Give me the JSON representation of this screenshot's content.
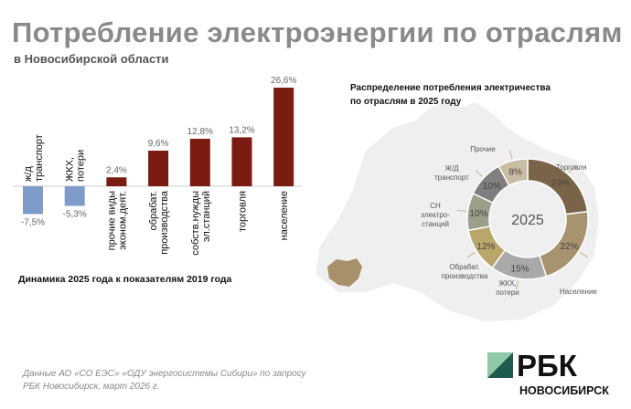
{
  "header": {
    "title": "Потребление электроэнергии по отраслям",
    "subtitle": "в Новосибирской области"
  },
  "chart_data": [
    {
      "type": "bar",
      "title": "Динамика 2025 года к показателям 2019 года",
      "unit": "%",
      "categories": [
        "ж/д транспорт",
        "ЖКХ, потери",
        "прочие виды эконом.деят.",
        "обрабат. производства",
        "собств.нужды эл.станций",
        "торговля",
        "население"
      ],
      "label_lines": [
        [
          "ж/д",
          "транспорт"
        ],
        [
          "ЖКХ,",
          "потери"
        ],
        [
          "прочие виды",
          "эконом.деят."
        ],
        [
          "обрабат.",
          "производства"
        ],
        [
          "собств.нужды",
          "эл.станций"
        ],
        [
          "торговля"
        ],
        [
          "население"
        ]
      ],
      "values": [
        -7.5,
        -5.3,
        2.4,
        9.6,
        12.8,
        13.2,
        26.6
      ],
      "value_labels": [
        "-7,5%",
        "-5,3%",
        "2,4%",
        "9,6%",
        "12,8%",
        "13,2%",
        "26,6%"
      ],
      "colors": {
        "negative": "#7f9cc9",
        "positive": "#7a1c12"
      }
    },
    {
      "type": "pie",
      "title": "Распределение потребления электричества по отраслям в 2025 году",
      "center_label": "2025",
      "categories": [
        "Торговля",
        "Население",
        "ЖКХ, потери",
        "Обрабат. производства",
        "СН электро-станций",
        "Ж/Д транспорт",
        "Прочие"
      ],
      "label_lines": [
        [
          "Торговля"
        ],
        [
          "Население"
        ],
        [
          "ЖКХ,",
          "потери"
        ],
        [
          "Обрабат.",
          "производства"
        ],
        [
          "СН",
          "электро-",
          "станций"
        ],
        [
          "Ж/Д",
          "транспорт"
        ],
        [
          "Прочие"
        ]
      ],
      "values": [
        23,
        22,
        15,
        12,
        10,
        10,
        8
      ],
      "value_labels": [
        "23%",
        "22%",
        "15%",
        "12%",
        "10%",
        "10%",
        "8%"
      ],
      "colors": [
        "#7a6448",
        "#a8936f",
        "#a9a9a9",
        "#b9a66b",
        "#9e9e8c",
        "#7f7f7f",
        "#c9bca4"
      ]
    }
  ],
  "footer": {
    "source_line1": "Данные АО «СО ЕЭС» «ОДУ энергосистемы Сибири» по запросу",
    "source_line2": "РБК Новосибирск, март 2026 г."
  },
  "logo": {
    "brand": "РБК",
    "region": "НОВОСИБИРСК"
  }
}
